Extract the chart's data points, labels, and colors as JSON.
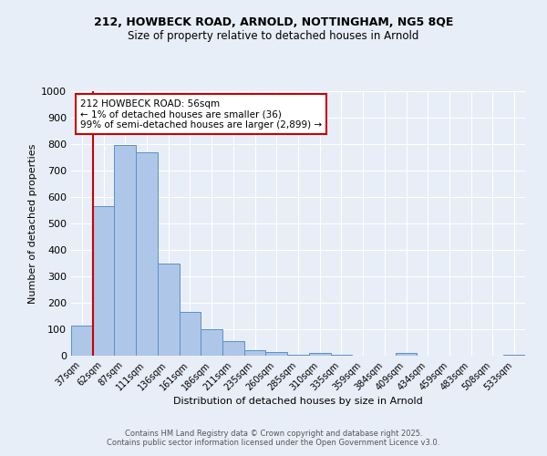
{
  "title1": "212, HOWBECK ROAD, ARNOLD, NOTTINGHAM, NG5 8QE",
  "title2": "Size of property relative to detached houses in Arnold",
  "xlabel": "Distribution of detached houses by size in Arnold",
  "ylabel": "Number of detached properties",
  "categories": [
    "37sqm",
    "62sqm",
    "87sqm",
    "111sqm",
    "136sqm",
    "161sqm",
    "186sqm",
    "211sqm",
    "235sqm",
    "260sqm",
    "285sqm",
    "310sqm",
    "335sqm",
    "359sqm",
    "384sqm",
    "409sqm",
    "434sqm",
    "459sqm",
    "483sqm",
    "508sqm",
    "533sqm"
  ],
  "values": [
    115,
    565,
    795,
    770,
    350,
    165,
    100,
    55,
    20,
    13,
    5,
    12,
    5,
    0,
    0,
    10,
    0,
    0,
    0,
    0,
    5
  ],
  "bar_color": "#aec6e8",
  "bar_edge_color": "#5b8fc9",
  "red_line_x": 0.5,
  "annotation_text": "212 HOWBECK ROAD: 56sqm\n← 1% of detached houses are smaller (36)\n99% of semi-detached houses are larger (2,899) →",
  "annotation_box_color": "#ffffff",
  "annotation_box_edge": "#cc0000",
  "footer1": "Contains HM Land Registry data © Crown copyright and database right 2025.",
  "footer2": "Contains public sector information licensed under the Open Government Licence v3.0.",
  "ylim": [
    0,
    1000
  ],
  "yticks": [
    0,
    100,
    200,
    300,
    400,
    500,
    600,
    700,
    800,
    900,
    1000
  ],
  "bg_color": "#e8eef8",
  "grid_color": "#ffffff"
}
